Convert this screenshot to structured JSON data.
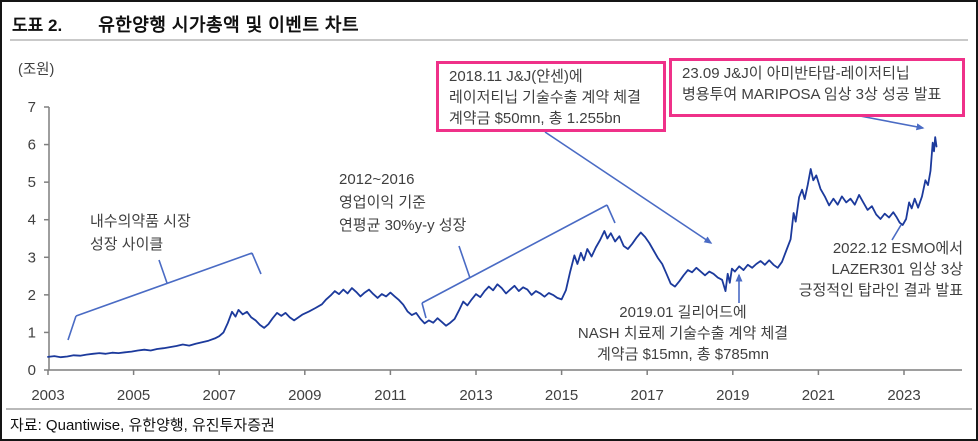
{
  "frame": {
    "header_label": "도표 2.",
    "header_title": "유한양행 시가총액 및 이벤트 차트",
    "source_text": "자료: Quantiwise, 유한양행, 유진투자증권"
  },
  "colors": {
    "series_line": "#1c3a9c",
    "annotation_blue": "#4a6bc4",
    "event_box_border": "#ef3189",
    "axis": "#7f7f7f",
    "text": "#3f3f3f"
  },
  "annotations": {
    "cycle1": {
      "lines": [
        "내수의약품 시장",
        "성장 사이클"
      ]
    },
    "cycle2": {
      "lines": [
        "2012~2016",
        "영업이익 기준",
        "연평균 30%y-y 성장"
      ]
    },
    "event1": {
      "lines": [
        "2018.11 J&J(얀센)에",
        "레이저티닙 기술수출 계약 체결",
        "계약금 $50mn, 총 1.255bn"
      ]
    },
    "event2": {
      "lines": [
        "23.09 J&J이 아미반타맙-레이저티닙",
        "병용투여 MARIPOSA 임상 3상 성공 발표"
      ]
    },
    "esmo": {
      "lines": [
        "2022.12 ESMO에서",
        "LAZER301 임상 3상",
        "긍정적인 탑라인 결과 발표"
      ]
    },
    "gilead": {
      "lines": [
        "2019.01 길리어드에",
        "NASH 치료제 기술수출 계약 체결",
        "계약금 $15mn, 총 $785mn"
      ]
    }
  },
  "chart_data": {
    "type": "line",
    "title": "유한양행 시가총액 및 이벤트 차트",
    "ylabel": "(조원)",
    "unit_label": "(조원)",
    "ylim": [
      0,
      7
    ],
    "yticks": [
      0,
      1,
      2,
      3,
      4,
      5,
      6,
      7
    ],
    "xticks": [
      2003,
      2005,
      2007,
      2009,
      2011,
      2013,
      2015,
      2017,
      2019,
      2021,
      2023
    ],
    "xlim": [
      2003,
      2023.9
    ],
    "grid": false,
    "legend": false,
    "series": [
      {
        "name": "유한양행 시가총액 (조원)",
        "points": [
          [
            2003.0,
            0.35
          ],
          [
            2003.15,
            0.37
          ],
          [
            2003.3,
            0.34
          ],
          [
            2003.45,
            0.36
          ],
          [
            2003.6,
            0.39
          ],
          [
            2003.75,
            0.38
          ],
          [
            2003.9,
            0.41
          ],
          [
            2004.05,
            0.43
          ],
          [
            2004.2,
            0.45
          ],
          [
            2004.35,
            0.43
          ],
          [
            2004.5,
            0.46
          ],
          [
            2004.65,
            0.45
          ],
          [
            2004.8,
            0.47
          ],
          [
            2004.95,
            0.49
          ],
          [
            2005.1,
            0.52
          ],
          [
            2005.25,
            0.54
          ],
          [
            2005.4,
            0.52
          ],
          [
            2005.55,
            0.56
          ],
          [
            2005.7,
            0.58
          ],
          [
            2005.85,
            0.61
          ],
          [
            2006.0,
            0.64
          ],
          [
            2006.15,
            0.68
          ],
          [
            2006.3,
            0.65
          ],
          [
            2006.45,
            0.7
          ],
          [
            2006.6,
            0.74
          ],
          [
            2006.75,
            0.78
          ],
          [
            2006.9,
            0.84
          ],
          [
            2007.0,
            0.9
          ],
          [
            2007.1,
            1.0
          ],
          [
            2007.2,
            1.25
          ],
          [
            2007.3,
            1.55
          ],
          [
            2007.38,
            1.42
          ],
          [
            2007.45,
            1.6
          ],
          [
            2007.55,
            1.48
          ],
          [
            2007.65,
            1.55
          ],
          [
            2007.75,
            1.4
          ],
          [
            2007.85,
            1.32
          ],
          [
            2007.95,
            1.2
          ],
          [
            2008.05,
            1.12
          ],
          [
            2008.15,
            1.22
          ],
          [
            2008.25,
            1.38
          ],
          [
            2008.35,
            1.52
          ],
          [
            2008.45,
            1.44
          ],
          [
            2008.55,
            1.52
          ],
          [
            2008.65,
            1.4
          ],
          [
            2008.75,
            1.32
          ],
          [
            2008.85,
            1.4
          ],
          [
            2008.95,
            1.48
          ],
          [
            2009.1,
            1.56
          ],
          [
            2009.25,
            1.65
          ],
          [
            2009.4,
            1.75
          ],
          [
            2009.5,
            1.88
          ],
          [
            2009.6,
            1.98
          ],
          [
            2009.7,
            2.1
          ],
          [
            2009.8,
            2.02
          ],
          [
            2009.9,
            2.14
          ],
          [
            2010.0,
            2.04
          ],
          [
            2010.1,
            2.18
          ],
          [
            2010.2,
            2.08
          ],
          [
            2010.3,
            1.96
          ],
          [
            2010.4,
            2.06
          ],
          [
            2010.5,
            2.14
          ],
          [
            2010.6,
            2.02
          ],
          [
            2010.7,
            1.92
          ],
          [
            2010.8,
            2.02
          ],
          [
            2010.9,
            1.96
          ],
          [
            2011.0,
            2.06
          ],
          [
            2011.1,
            1.96
          ],
          [
            2011.2,
            1.86
          ],
          [
            2011.3,
            1.74
          ],
          [
            2011.4,
            1.56
          ],
          [
            2011.5,
            1.46
          ],
          [
            2011.6,
            1.52
          ],
          [
            2011.7,
            1.36
          ],
          [
            2011.8,
            1.24
          ],
          [
            2011.9,
            1.32
          ],
          [
            2012.0,
            1.26
          ],
          [
            2012.1,
            1.38
          ],
          [
            2012.2,
            1.28
          ],
          [
            2012.3,
            1.18
          ],
          [
            2012.4,
            1.26
          ],
          [
            2012.5,
            1.36
          ],
          [
            2012.6,
            1.58
          ],
          [
            2012.7,
            1.82
          ],
          [
            2012.8,
            1.72
          ],
          [
            2012.9,
            1.88
          ],
          [
            2013.0,
            2.02
          ],
          [
            2013.1,
            1.94
          ],
          [
            2013.2,
            2.1
          ],
          [
            2013.3,
            2.22
          ],
          [
            2013.4,
            2.12
          ],
          [
            2013.5,
            2.28
          ],
          [
            2013.6,
            2.18
          ],
          [
            2013.7,
            2.04
          ],
          [
            2013.8,
            2.14
          ],
          [
            2013.9,
            2.24
          ],
          [
            2014.0,
            2.1
          ],
          [
            2014.1,
            2.2
          ],
          [
            2014.2,
            2.14
          ],
          [
            2014.3,
            2.0
          ],
          [
            2014.4,
            2.1
          ],
          [
            2014.5,
            2.04
          ],
          [
            2014.6,
            1.95
          ],
          [
            2014.7,
            2.05
          ],
          [
            2014.8,
            2.0
          ],
          [
            2014.9,
            1.92
          ],
          [
            2015.0,
            1.88
          ],
          [
            2015.1,
            2.12
          ],
          [
            2015.2,
            2.62
          ],
          [
            2015.3,
            3.05
          ],
          [
            2015.37,
            2.82
          ],
          [
            2015.45,
            3.12
          ],
          [
            2015.52,
            2.92
          ],
          [
            2015.6,
            3.22
          ],
          [
            2015.7,
            3.02
          ],
          [
            2015.8,
            3.26
          ],
          [
            2015.9,
            3.46
          ],
          [
            2016.0,
            3.7
          ],
          [
            2016.07,
            3.5
          ],
          [
            2016.15,
            3.64
          ],
          [
            2016.25,
            3.42
          ],
          [
            2016.35,
            3.56
          ],
          [
            2016.45,
            3.3
          ],
          [
            2016.55,
            3.22
          ],
          [
            2016.65,
            3.36
          ],
          [
            2016.75,
            3.52
          ],
          [
            2016.85,
            3.66
          ],
          [
            2016.95,
            3.54
          ],
          [
            2017.05,
            3.38
          ],
          [
            2017.15,
            3.18
          ],
          [
            2017.25,
            2.98
          ],
          [
            2017.35,
            2.82
          ],
          [
            2017.45,
            2.56
          ],
          [
            2017.55,
            2.3
          ],
          [
            2017.65,
            2.22
          ],
          [
            2017.75,
            2.36
          ],
          [
            2017.85,
            2.52
          ],
          [
            2017.95,
            2.66
          ],
          [
            2018.05,
            2.6
          ],
          [
            2018.15,
            2.72
          ],
          [
            2018.25,
            2.62
          ],
          [
            2018.35,
            2.52
          ],
          [
            2018.45,
            2.62
          ],
          [
            2018.55,
            2.56
          ],
          [
            2018.65,
            2.46
          ],
          [
            2018.75,
            2.4
          ],
          [
            2018.83,
            2.1
          ],
          [
            2018.88,
            2.56
          ],
          [
            2018.93,
            2.32
          ],
          [
            2018.98,
            2.7
          ],
          [
            2019.05,
            2.62
          ],
          [
            2019.15,
            2.76
          ],
          [
            2019.25,
            2.66
          ],
          [
            2019.35,
            2.8
          ],
          [
            2019.45,
            2.72
          ],
          [
            2019.55,
            2.82
          ],
          [
            2019.65,
            2.9
          ],
          [
            2019.75,
            2.8
          ],
          [
            2019.85,
            2.92
          ],
          [
            2019.95,
            2.8
          ],
          [
            2020.05,
            2.72
          ],
          [
            2020.15,
            2.88
          ],
          [
            2020.25,
            3.18
          ],
          [
            2020.35,
            3.48
          ],
          [
            2020.42,
            4.18
          ],
          [
            2020.47,
            3.95
          ],
          [
            2020.55,
            4.6
          ],
          [
            2020.62,
            4.8
          ],
          [
            2020.68,
            4.55
          ],
          [
            2020.75,
            4.92
          ],
          [
            2020.82,
            5.35
          ],
          [
            2020.88,
            5.05
          ],
          [
            2020.95,
            5.18
          ],
          [
            2021.05,
            4.82
          ],
          [
            2021.15,
            4.62
          ],
          [
            2021.25,
            4.38
          ],
          [
            2021.35,
            4.56
          ],
          [
            2021.45,
            4.4
          ],
          [
            2021.55,
            4.62
          ],
          [
            2021.65,
            4.46
          ],
          [
            2021.75,
            4.56
          ],
          [
            2021.85,
            4.4
          ],
          [
            2021.95,
            4.66
          ],
          [
            2022.05,
            4.46
          ],
          [
            2022.15,
            4.26
          ],
          [
            2022.25,
            4.36
          ],
          [
            2022.35,
            4.14
          ],
          [
            2022.45,
            4.02
          ],
          [
            2022.55,
            4.16
          ],
          [
            2022.65,
            4.06
          ],
          [
            2022.75,
            4.2
          ],
          [
            2022.82,
            4.08
          ],
          [
            2022.9,
            3.92
          ],
          [
            2022.97,
            3.86
          ],
          [
            2023.05,
            4.02
          ],
          [
            2023.12,
            4.46
          ],
          [
            2023.18,
            4.3
          ],
          [
            2023.25,
            4.56
          ],
          [
            2023.33,
            4.32
          ],
          [
            2023.42,
            4.62
          ],
          [
            2023.5,
            5.05
          ],
          [
            2023.56,
            4.92
          ],
          [
            2023.62,
            5.3
          ],
          [
            2023.67,
            6.05
          ],
          [
            2023.7,
            5.82
          ],
          [
            2023.73,
            6.2
          ],
          [
            2023.76,
            5.95
          ]
        ]
      }
    ]
  }
}
